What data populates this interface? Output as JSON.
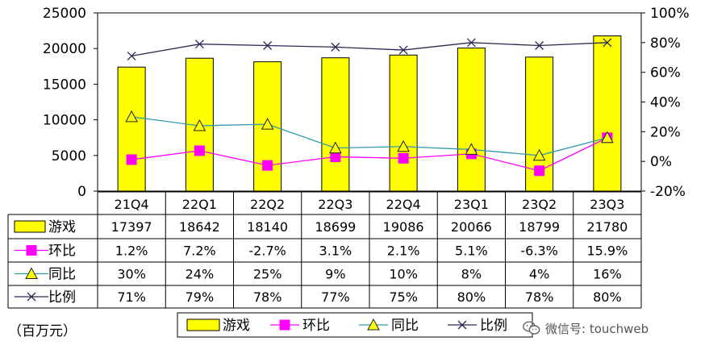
{
  "chart_data": {
    "type": "bar",
    "unit_note": "（百万元）",
    "categories": [
      "21Q4",
      "22Q1",
      "22Q2",
      "22Q3",
      "22Q4",
      "23Q1",
      "23Q2",
      "23Q3"
    ],
    "left_axis": {
      "ylim": [
        0,
        25000
      ],
      "ticks": [
        "0",
        "5000",
        "10000",
        "15000",
        "20000",
        "25000"
      ]
    },
    "right_axis": {
      "ylim": [
        -20,
        100
      ],
      "ticks": [
        "-20%",
        "0%",
        "20%",
        "40%",
        "60%",
        "80%",
        "100%"
      ]
    },
    "series": [
      {
        "name": "游戏",
        "type": "bar",
        "axis": "left",
        "color": "#ffff00",
        "values": [
          17397,
          18642,
          18140,
          18699,
          19086,
          20066,
          18799,
          21780
        ],
        "labels": [
          "17397",
          "18642",
          "18140",
          "18699",
          "19086",
          "20066",
          "18799",
          "21780"
        ]
      },
      {
        "name": "环比",
        "type": "line",
        "axis": "right",
        "color": "#ff00ff",
        "marker": "square",
        "values": [
          1.2,
          7.2,
          -2.7,
          3.1,
          2.1,
          5.1,
          -6.3,
          15.9
        ],
        "labels": [
          "1.2%",
          "7.2%",
          "-2.7%",
          "3.1%",
          "2.1%",
          "5.1%",
          "-6.3%",
          "15.9%"
        ]
      },
      {
        "name": "同比",
        "type": "line",
        "axis": "right",
        "color": "#3399aa",
        "marker": "triangle",
        "values": [
          30,
          24,
          25,
          9,
          10,
          8,
          4,
          16
        ],
        "labels": [
          "30%",
          "24%",
          "25%",
          "9%",
          "10%",
          "8%",
          "4%",
          "16%"
        ]
      },
      {
        "name": "比例",
        "type": "line",
        "axis": "right",
        "color": "#2a2a55",
        "marker": "x",
        "values": [
          71,
          79,
          78,
          77,
          75,
          80,
          78,
          80
        ],
        "labels": [
          "71%",
          "79%",
          "78%",
          "77%",
          "75%",
          "80%",
          "78%",
          "80%"
        ]
      }
    ],
    "legend": "bottom",
    "grid": false
  },
  "watermark": {
    "text": "微信号: touchweb",
    "icon": "wechat-icon"
  }
}
